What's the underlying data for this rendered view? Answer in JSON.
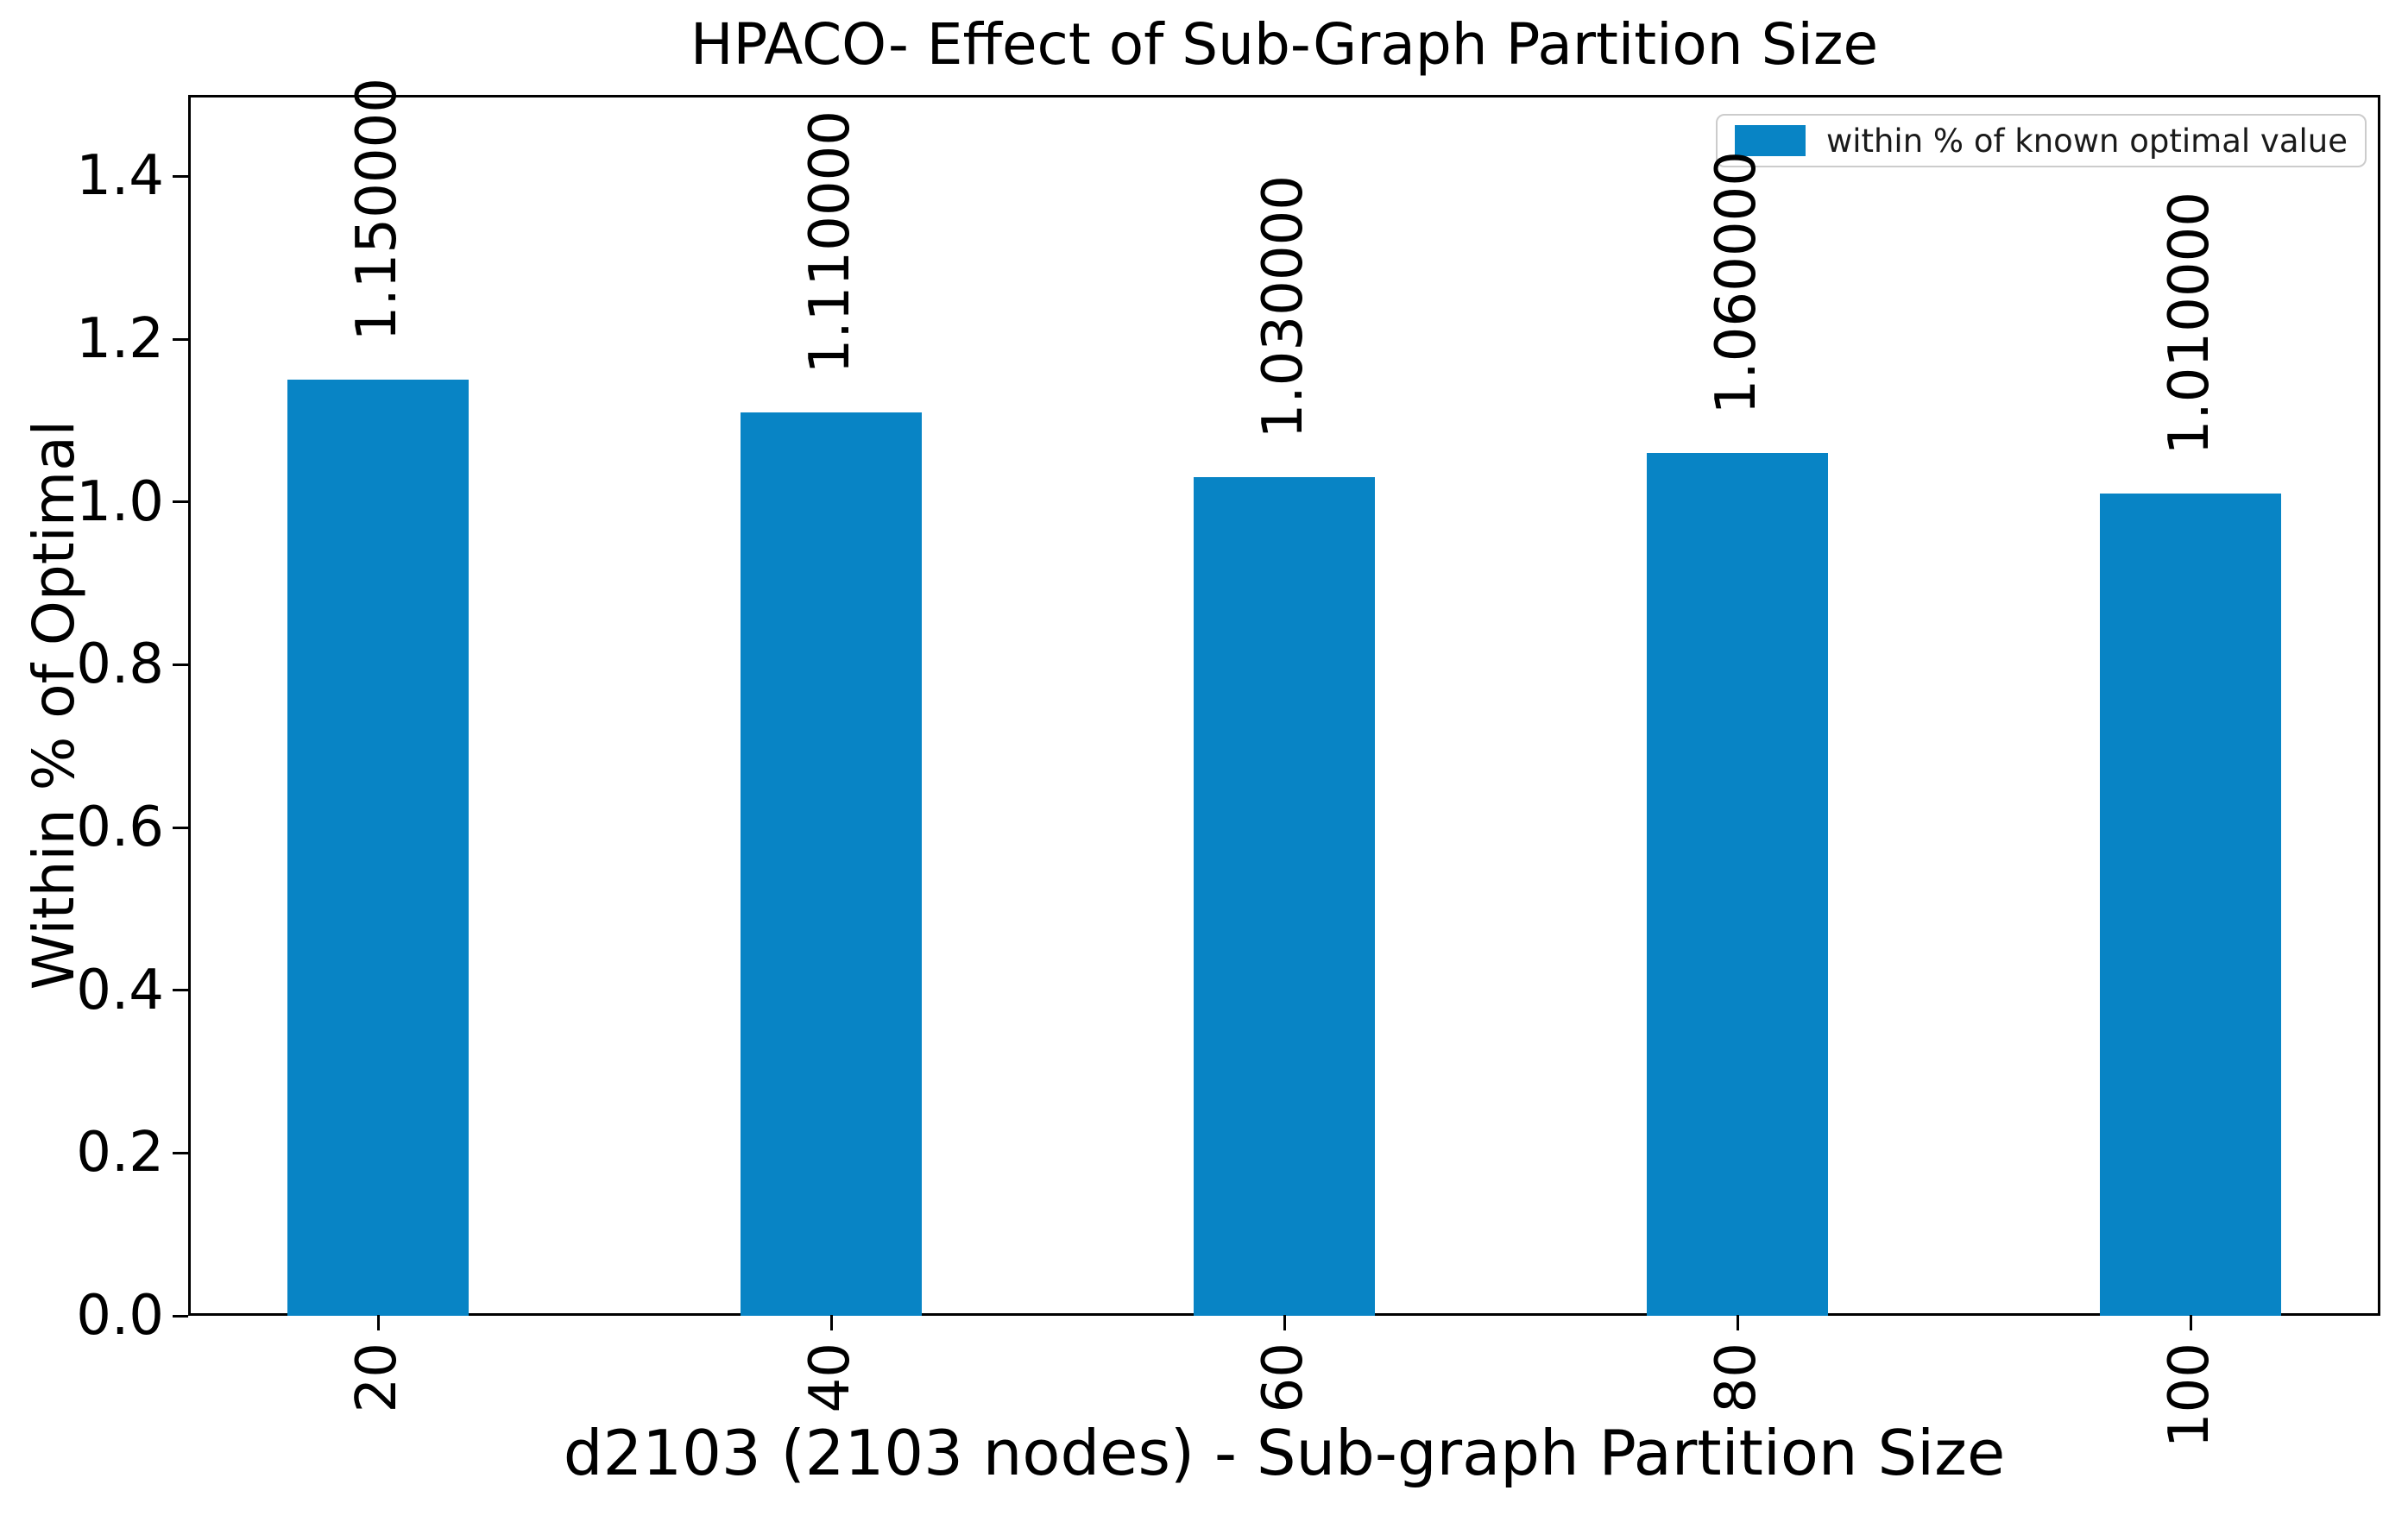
{
  "chart_data": {
    "type": "bar",
    "title": "HPACO- Effect of Sub-Graph Partition Size",
    "xlabel": "d2103 (2103 nodes) - Sub-graph Partition Size",
    "ylabel": "Within % of Optimal",
    "categories": [
      "20",
      "40",
      "60",
      "80",
      "100"
    ],
    "values": [
      1.15,
      1.11,
      1.03,
      1.06,
      1.01
    ],
    "bar_value_labels": [
      "1.150000",
      "1.110000",
      "1.030000",
      "1.060000",
      "1.010000"
    ],
    "legend": {
      "label": "within % of known optimal value",
      "position": "upper right"
    },
    "ylim": [
      0,
      1.5
    ],
    "yticks": [
      "0.0",
      "0.2",
      "0.4",
      "0.6",
      "0.8",
      "1.0",
      "1.2",
      "1.4"
    ],
    "bar_color": "#0884c5",
    "grid": false,
    "x_tick_rotation": 90,
    "bar_label_rotation": 90
  }
}
